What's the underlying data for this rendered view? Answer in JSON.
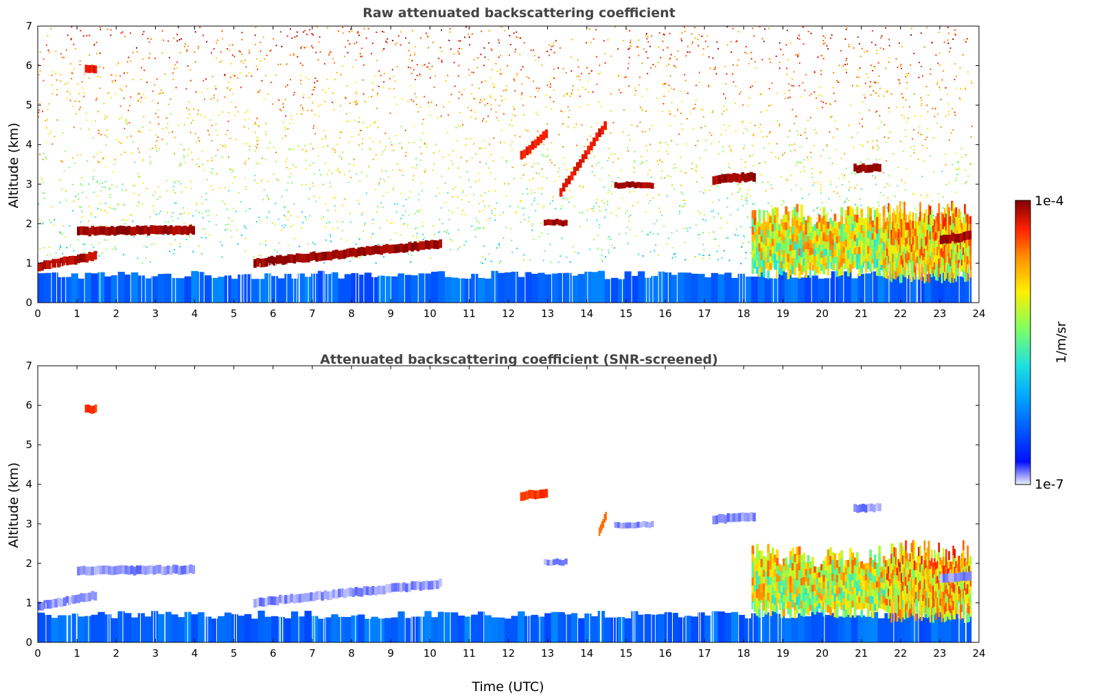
{
  "chart_data": [
    {
      "type": "heatmap",
      "title": "Raw attenuated backscattering coefficient",
      "xlabel": "",
      "ylabel": "Altitude (km)",
      "xlim": [
        0,
        24
      ],
      "ylim": [
        0,
        7
      ],
      "x_ticks": [
        0,
        1,
        2,
        3,
        4,
        5,
        6,
        7,
        8,
        9,
        10,
        11,
        12,
        13,
        14,
        15,
        16,
        17,
        18,
        19,
        20,
        21,
        22,
        23,
        24
      ],
      "y_ticks": [
        0,
        1,
        2,
        3,
        4,
        5,
        6,
        7
      ],
      "screened": false,
      "features": [
        {
          "kind": "surface_layer",
          "x_range": [
            0,
            23.8
          ],
          "top_km": 0.7,
          "level": 0.2
        },
        {
          "kind": "noise",
          "x_range": [
            0,
            23.8
          ],
          "y_range": [
            1.0,
            7.0
          ],
          "level_range": [
            0.25,
            0.9
          ]
        },
        {
          "kind": "cloud",
          "x_range": [
            1.0,
            4.0
          ],
          "y_range": [
            1.7,
            1.95
          ],
          "level": 0.97
        },
        {
          "kind": "cloud",
          "x_range": [
            0.0,
            1.5
          ],
          "y_range": [
            0.8,
            1.3
          ],
          "level": 0.95
        },
        {
          "kind": "cloud",
          "x_range": [
            5.5,
            10.3
          ],
          "y_range": [
            0.9,
            1.6
          ],
          "level": 0.97
        },
        {
          "kind": "cloud",
          "x_range": [
            1.2,
            1.5
          ],
          "y_range": [
            5.8,
            6.0
          ],
          "level": 0.9
        },
        {
          "kind": "cloud",
          "x_range": [
            12.3,
            13.0
          ],
          "y_range": [
            3.6,
            4.4
          ],
          "level": 0.88
        },
        {
          "kind": "cloud",
          "x_range": [
            13.3,
            14.5
          ],
          "y_range": [
            2.7,
            4.6
          ],
          "level": 0.9
        },
        {
          "kind": "cloud",
          "x_range": [
            12.9,
            13.5
          ],
          "y_range": [
            1.95,
            2.1
          ],
          "level": 0.97
        },
        {
          "kind": "cloud",
          "x_range": [
            14.7,
            15.7
          ],
          "y_range": [
            2.9,
            3.05
          ],
          "level": 0.97
        },
        {
          "kind": "cloud",
          "x_range": [
            17.2,
            18.3
          ],
          "y_range": [
            3.0,
            3.3
          ],
          "level": 0.97
        },
        {
          "kind": "cloud",
          "x_range": [
            20.8,
            21.5
          ],
          "y_range": [
            3.3,
            3.5
          ],
          "level": 0.97
        },
        {
          "kind": "mixed_layer",
          "x_range": [
            18.2,
            21.6
          ],
          "y_range": [
            0.6,
            2.5
          ],
          "level": 0.6
        },
        {
          "kind": "mixed_layer",
          "x_range": [
            21.6,
            23.8
          ],
          "y_range": [
            0.5,
            2.6
          ],
          "level": 0.68
        },
        {
          "kind": "cloud",
          "x_range": [
            23.0,
            23.8
          ],
          "y_range": [
            1.5,
            1.8
          ],
          "level": 0.97
        }
      ]
    },
    {
      "type": "heatmap",
      "title": "Attenuated backscattering coefficient (SNR-screened)",
      "xlabel": "Time (UTC)",
      "ylabel": "Altitude (km)",
      "xlim": [
        0,
        24
      ],
      "ylim": [
        0,
        7
      ],
      "x_ticks": [
        0,
        1,
        2,
        3,
        4,
        5,
        6,
        7,
        8,
        9,
        10,
        11,
        12,
        13,
        14,
        15,
        16,
        17,
        18,
        19,
        20,
        21,
        22,
        23,
        24
      ],
      "y_ticks": [
        0,
        1,
        2,
        3,
        4,
        5,
        6,
        7
      ],
      "screened": true,
      "features": [
        {
          "kind": "surface_layer",
          "x_range": [
            0,
            23.8
          ],
          "top_km": 0.7,
          "level": 0.2
        },
        {
          "kind": "cloud",
          "x_range": [
            1.0,
            4.0
          ],
          "y_range": [
            1.7,
            1.95
          ],
          "level": 0.05
        },
        {
          "kind": "cloud",
          "x_range": [
            0.0,
            1.5
          ],
          "y_range": [
            0.8,
            1.3
          ],
          "level": 0.05
        },
        {
          "kind": "cloud",
          "x_range": [
            5.5,
            10.3
          ],
          "y_range": [
            0.9,
            1.6
          ],
          "level": 0.05
        },
        {
          "kind": "cloud",
          "x_range": [
            1.2,
            1.5
          ],
          "y_range": [
            5.8,
            6.0
          ],
          "level": 0.85
        },
        {
          "kind": "cloud",
          "x_range": [
            12.3,
            13.0
          ],
          "y_range": [
            3.6,
            3.9
          ],
          "level": 0.85
        },
        {
          "kind": "cloud",
          "x_range": [
            14.3,
            14.5
          ],
          "y_range": [
            2.7,
            3.3
          ],
          "level": 0.8
        },
        {
          "kind": "cloud",
          "x_range": [
            12.9,
            13.5
          ],
          "y_range": [
            1.95,
            2.1
          ],
          "level": 0.05
        },
        {
          "kind": "cloud",
          "x_range": [
            14.7,
            15.7
          ],
          "y_range": [
            2.9,
            3.05
          ],
          "level": 0.05
        },
        {
          "kind": "cloud",
          "x_range": [
            17.2,
            18.3
          ],
          "y_range": [
            3.0,
            3.3
          ],
          "level": 0.05
        },
        {
          "kind": "cloud",
          "x_range": [
            20.8,
            21.5
          ],
          "y_range": [
            3.3,
            3.5
          ],
          "level": 0.05
        },
        {
          "kind": "mixed_layer",
          "x_range": [
            18.2,
            21.6
          ],
          "y_range": [
            0.6,
            2.5
          ],
          "level": 0.6
        },
        {
          "kind": "mixed_layer",
          "x_range": [
            21.6,
            23.8
          ],
          "y_range": [
            0.5,
            2.6
          ],
          "level": 0.68
        },
        {
          "kind": "cloud",
          "x_range": [
            23.0,
            23.8
          ],
          "y_range": [
            1.5,
            1.8
          ],
          "level": 0.05
        }
      ]
    }
  ],
  "colorbar": {
    "label": "1/m/sr",
    "max_label": "1e-4",
    "min_label": "1e-7",
    "colormap": [
      "#f0f0ff",
      "#0010ff",
      "#00a0ff",
      "#20e0e0",
      "#80ff60",
      "#ffee00",
      "#ff9000",
      "#ff2000",
      "#800000"
    ]
  }
}
